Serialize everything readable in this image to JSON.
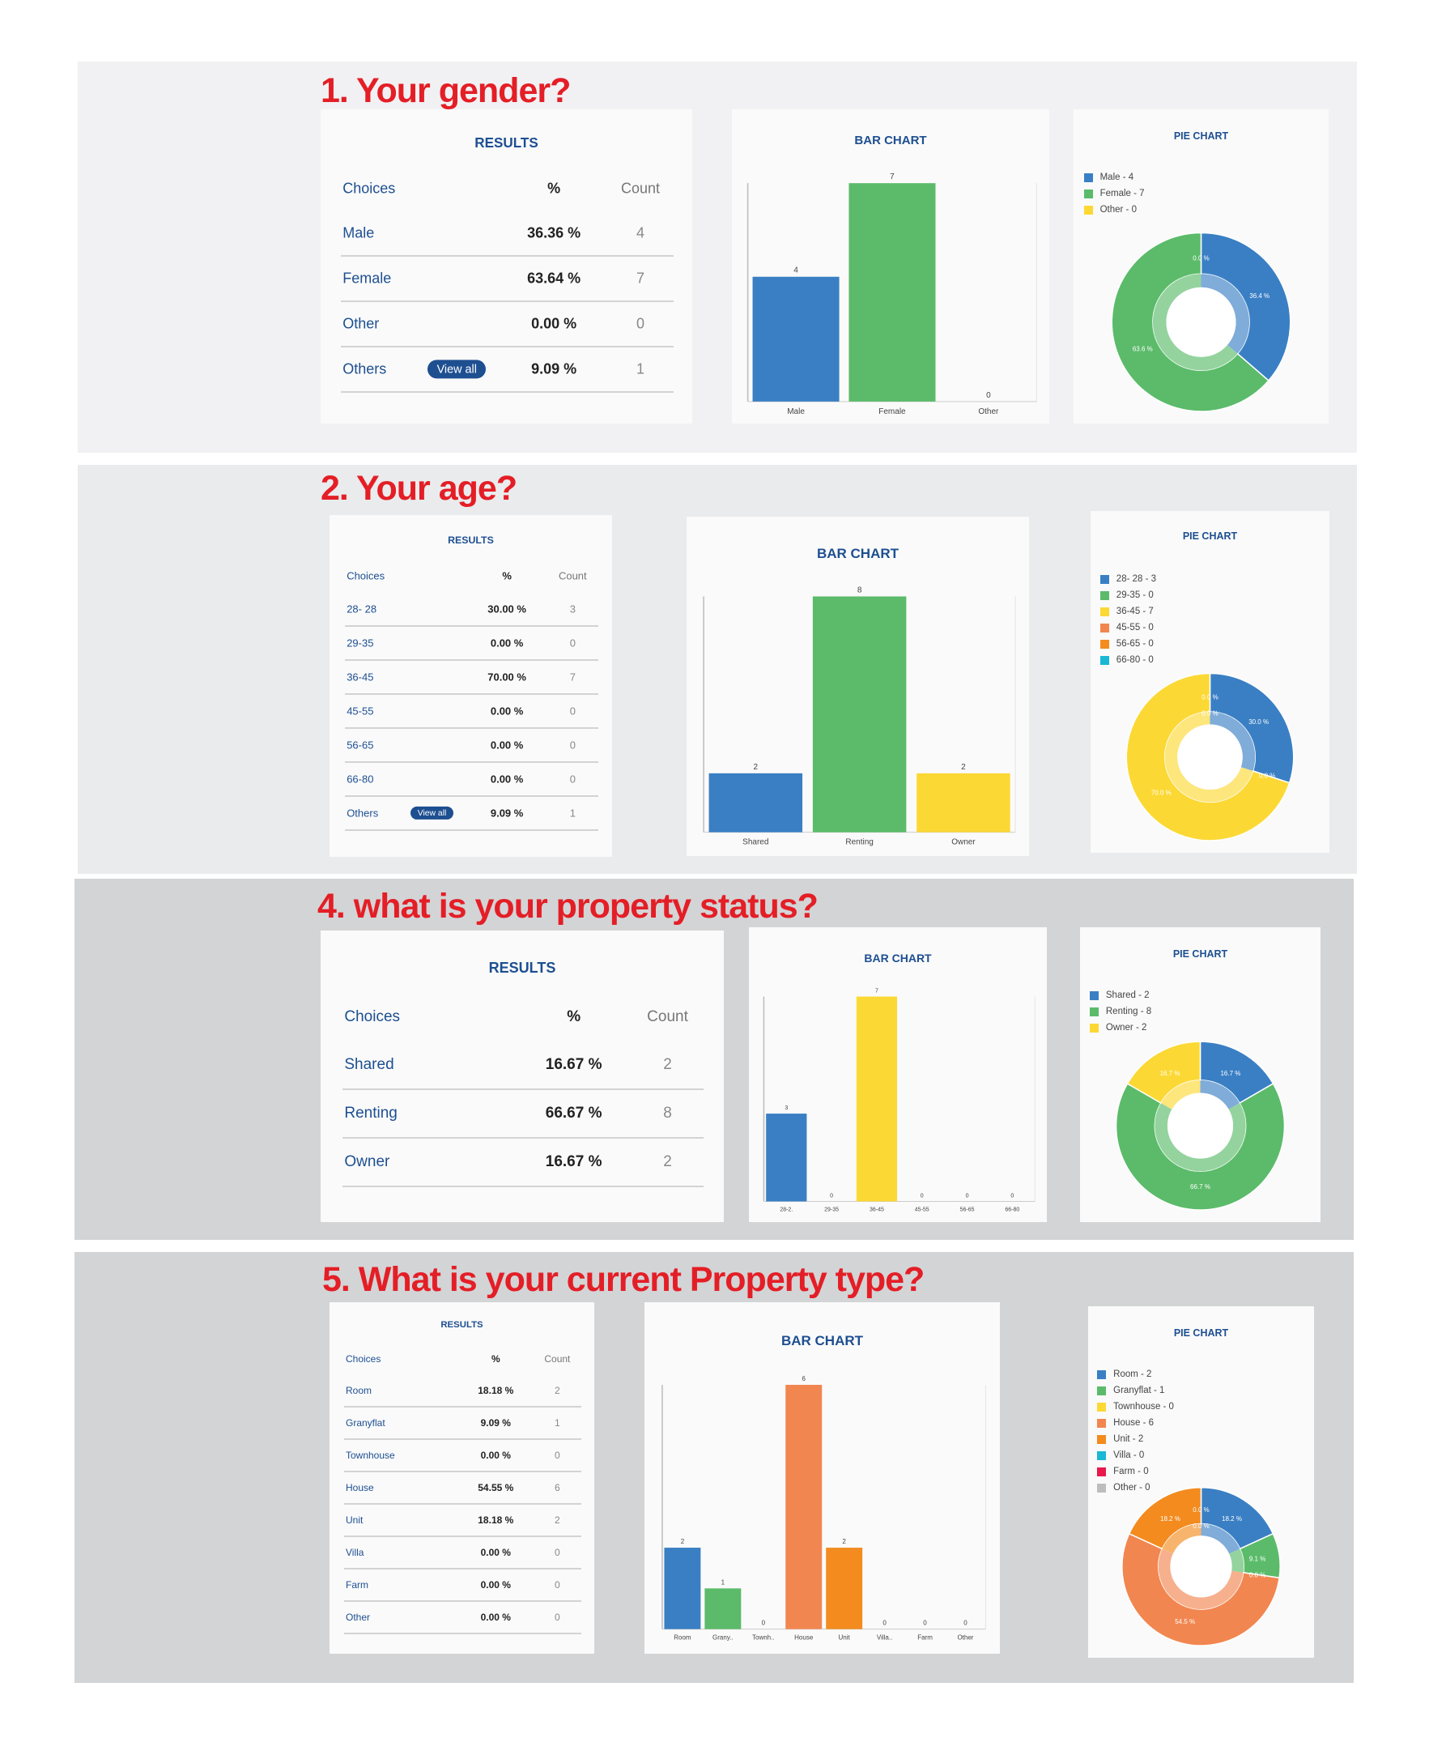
{
  "palette": [
    "#3a7fc4",
    "#5bbb6a",
    "#fcd835",
    "#f28650",
    "#f38b1f",
    "#19b8d5",
    "#e8194b",
    "#bdbdbd"
  ],
  "labels": {
    "results": "RESULTS",
    "bar_chart": "BAR CHART",
    "pie_chart": "PIE CHART",
    "col_choices": "Choices",
    "col_pct": "%",
    "col_count": "Count",
    "view_all": "View all"
  },
  "sections": [
    {
      "title": "1. Your gender?",
      "table": [
        {
          "choice": "Male",
          "pct": "36.36 %",
          "count": "4"
        },
        {
          "choice": "Female",
          "pct": "63.64 %",
          "count": "7"
        },
        {
          "choice": "Other",
          "pct": "0.00 %",
          "count": "0"
        },
        {
          "choice": "Others",
          "pct": "9.09 %",
          "count": "1",
          "view_all": true
        }
      ]
    },
    {
      "title": "2. Your age?",
      "table": [
        {
          "choice": "28- 28",
          "pct": "30.00 %",
          "count": "3"
        },
        {
          "choice": "29-35",
          "pct": "0.00 %",
          "count": "0"
        },
        {
          "choice": "36-45",
          "pct": "70.00 %",
          "count": "7"
        },
        {
          "choice": "45-55",
          "pct": "0.00 %",
          "count": "0"
        },
        {
          "choice": "56-65",
          "pct": "0.00 %",
          "count": "0"
        },
        {
          "choice": "66-80",
          "pct": "0.00 %",
          "count": "0"
        },
        {
          "choice": "Others",
          "pct": "9.09 %",
          "count": "1",
          "view_all": true
        }
      ]
    },
    {
      "title": "4. what is your property status?",
      "table": [
        {
          "choice": "Shared",
          "pct": "16.67 %",
          "count": "2"
        },
        {
          "choice": "Renting",
          "pct": "66.67 %",
          "count": "8"
        },
        {
          "choice": "Owner",
          "pct": "16.67 %",
          "count": "2"
        }
      ]
    },
    {
      "title": "5. What is your current Property type?",
      "table": [
        {
          "choice": "Room",
          "pct": "18.18 %",
          "count": "2"
        },
        {
          "choice": "Granyflat",
          "pct": "9.09 %",
          "count": "1"
        },
        {
          "choice": "Townhouse",
          "pct": "0.00 %",
          "count": "0"
        },
        {
          "choice": "House",
          "pct": "54.55 %",
          "count": "6"
        },
        {
          "choice": "Unit",
          "pct": "18.18 %",
          "count": "2"
        },
        {
          "choice": "Villa",
          "pct": "0.00 %",
          "count": "0"
        },
        {
          "choice": "Farm",
          "pct": "0.00 %",
          "count": "0"
        },
        {
          "choice": "Other",
          "pct": "0.00 %",
          "count": "0"
        }
      ]
    }
  ],
  "chart_data": [
    {
      "type": "bar",
      "title": "BAR CHART",
      "categories": [
        "Male",
        "Female",
        "Other"
      ],
      "values": [
        4,
        7,
        0
      ],
      "ylim": [
        0,
        7
      ]
    },
    {
      "type": "pie",
      "title": "PIE CHART",
      "legend": [
        "Male - 4",
        "Female - 7",
        "Other - 0"
      ],
      "values": [
        4,
        7,
        0
      ],
      "slice_labels": [
        "36.4 %",
        "63.6 %",
        "0.0 %"
      ]
    },
    {
      "type": "bar",
      "title": "BAR CHART",
      "categories": [
        "Shared",
        "Renting",
        "Owner"
      ],
      "values": [
        2,
        8,
        2
      ],
      "ylim": [
        0,
        8
      ]
    },
    {
      "type": "pie",
      "title": "PIE CHART",
      "legend": [
        "28- 28 - 3",
        "29-35 - 0",
        "36-45 - 7",
        "45-55 - 0",
        "56-65 - 0",
        "66-80 - 0"
      ],
      "values": [
        3,
        0,
        7,
        0,
        0,
        0
      ],
      "slice_labels": [
        "30.0 %",
        "0.0 %",
        "70.0 %",
        "0.0 %",
        "0.0 %",
        "0.0 %"
      ]
    },
    {
      "type": "bar",
      "title": "BAR CHART",
      "categories": [
        "28-2.",
        "29-35",
        "36-45",
        "45-55",
        "56-65",
        "66-80"
      ],
      "values": [
        3,
        0,
        7,
        0,
        0,
        0
      ],
      "ylim": [
        0,
        7
      ]
    },
    {
      "type": "pie",
      "title": "PIE CHART",
      "legend": [
        "Shared - 2",
        "Renting  - 8",
        "Owner - 2"
      ],
      "values": [
        2,
        8,
        2
      ],
      "slice_labels": [
        "16.7 %",
        "66.7 %",
        "16.7 %"
      ]
    },
    {
      "type": "bar",
      "title": "BAR CHART",
      "categories": [
        "Room",
        "Grany..",
        "Townh..",
        "House",
        "Unit",
        "Villa..",
        "Farm",
        "Other"
      ],
      "values": [
        2,
        1,
        0,
        6,
        2,
        0,
        0,
        0
      ],
      "ylim": [
        0,
        6
      ]
    },
    {
      "type": "pie",
      "title": "PIE CHART",
      "legend": [
        "Room - 2",
        "Granyflat - 1",
        "Townhouse - 0",
        "House - 6",
        "Unit - 2",
        "Villa  - 0",
        "Farm - 0",
        "Other - 0"
      ],
      "values": [
        2,
        1,
        0,
        6,
        2,
        0,
        0,
        0
      ],
      "slice_labels": [
        "18.2 %",
        "9.1 %",
        "0.0 %",
        "54.5 %",
        "18.2 %",
        "0.0 %",
        "0.0 %",
        "0.0 %"
      ]
    }
  ]
}
